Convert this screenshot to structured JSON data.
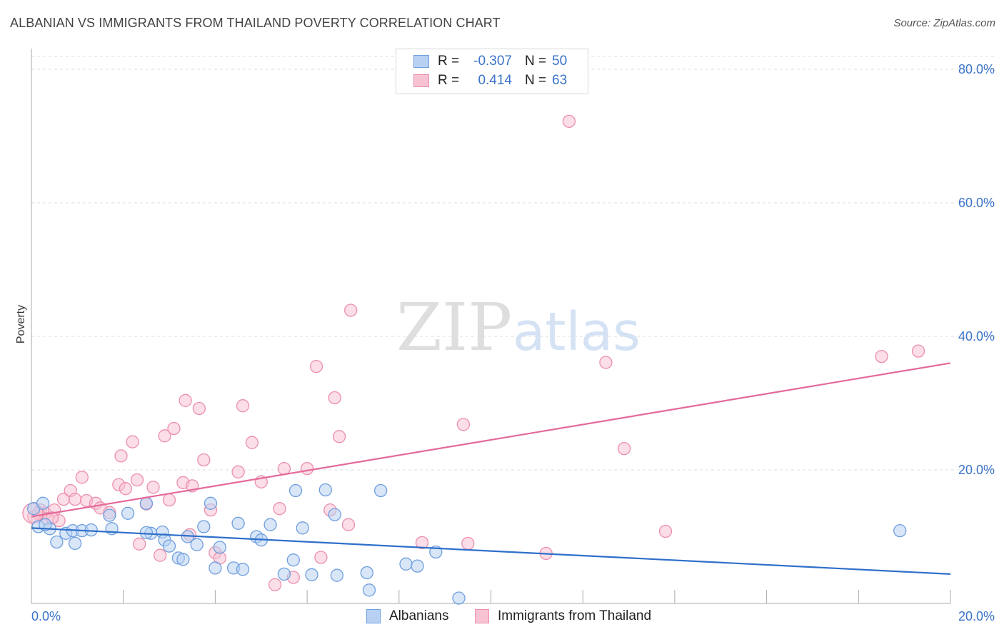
{
  "title": "ALBANIAN VS IMMIGRANTS FROM THAILAND POVERTY CORRELATION CHART",
  "source": "Source: ZipAtlas.com",
  "watermark": {
    "zip": "ZIP",
    "atlas": "atlas"
  },
  "colors": {
    "albanians_fill": "#b8d1f3",
    "albanians_stroke": "#6f9fde",
    "albanians_line": "#2f6fca",
    "thailand_fill": "#f7c3d3",
    "thailand_stroke": "#ec8fae",
    "thailand_line": "#e4699a",
    "axis_text": "#3a73c8",
    "grid": "#dddddd"
  },
  "legend": {
    "rows": [
      {
        "r_label": "R =",
        "r_value": "-0.307",
        "n_label": "N =",
        "n_value": "50"
      },
      {
        "r_label": "R =",
        "r_value": "0.414",
        "n_label": "N =",
        "n_value": "63"
      }
    ]
  },
  "bottom_legend": {
    "albanians": "Albanians",
    "thailand": "Immigrants from Thailand"
  },
  "chart_data": {
    "type": "scatter",
    "title": "ALBANIAN VS IMMIGRANTS FROM THAILAND POVERTY CORRELATION CHART",
    "xlabel": "",
    "ylabel": "Poverty",
    "xlim": [
      0,
      20
    ],
    "ylim": [
      0,
      80
    ],
    "x_tick_labels": [
      "0.0%",
      "20.0%"
    ],
    "y_ticks": [
      20,
      40,
      60,
      80
    ],
    "y_tick_labels": [
      "20.0%",
      "40.0%",
      "60.0%",
      "80.0%"
    ],
    "grid": true,
    "series": [
      {
        "name": "Albanians",
        "r": -0.307,
        "n": 50,
        "trend": {
          "x": [
            0,
            20
          ],
          "y": [
            11.3,
            4.4
          ]
        },
        "points": [
          [
            0.05,
            14.2
          ],
          [
            0.15,
            11.5
          ],
          [
            0.25,
            15.0
          ],
          [
            0.4,
            11.2
          ],
          [
            0.55,
            9.2
          ],
          [
            0.75,
            10.5
          ],
          [
            0.9,
            10.9
          ],
          [
            0.95,
            9.0
          ],
          [
            1.1,
            10.9
          ],
          [
            1.75,
            11.2
          ],
          [
            1.7,
            13.2
          ],
          [
            2.1,
            13.5
          ],
          [
            2.5,
            15.0
          ],
          [
            2.6,
            10.5
          ],
          [
            2.85,
            10.7
          ],
          [
            2.9,
            9.5
          ],
          [
            3.0,
            8.6
          ],
          [
            3.2,
            6.8
          ],
          [
            3.3,
            6.6
          ],
          [
            3.4,
            10.0
          ],
          [
            3.6,
            8.8
          ],
          [
            3.75,
            11.5
          ],
          [
            3.9,
            15.0
          ],
          [
            4.0,
            5.3
          ],
          [
            4.1,
            8.4
          ],
          [
            4.4,
            5.3
          ],
          [
            4.5,
            12.0
          ],
          [
            4.6,
            5.1
          ],
          [
            4.9,
            10.0
          ],
          [
            5.0,
            9.5
          ],
          [
            5.2,
            11.8
          ],
          [
            5.5,
            4.4
          ],
          [
            5.7,
            6.5
          ],
          [
            5.75,
            16.9
          ],
          [
            5.9,
            11.3
          ],
          [
            6.1,
            4.3
          ],
          [
            6.4,
            17.0
          ],
          [
            6.6,
            13.3
          ],
          [
            6.65,
            4.2
          ],
          [
            7.3,
            4.6
          ],
          [
            7.35,
            2.0
          ],
          [
            7.6,
            16.9
          ],
          [
            8.15,
            5.9
          ],
          [
            8.4,
            5.6
          ],
          [
            8.8,
            7.7
          ],
          [
            9.3,
            0.8
          ],
          [
            18.9,
            10.9
          ],
          [
            1.3,
            11.0
          ],
          [
            0.3,
            11.8
          ],
          [
            2.5,
            10.6
          ]
        ]
      },
      {
        "name": "Immigrants from Thailand",
        "r": 0.414,
        "n": 63,
        "trend": {
          "x": [
            0,
            20
          ],
          "y": [
            13.0,
            36.0
          ]
        },
        "points": [
          [
            0.05,
            13.0
          ],
          [
            0.2,
            14.0
          ],
          [
            0.3,
            13.5
          ],
          [
            0.35,
            12.7
          ],
          [
            0.5,
            14.0
          ],
          [
            0.6,
            12.4
          ],
          [
            0.7,
            15.6
          ],
          [
            0.85,
            16.9
          ],
          [
            0.95,
            15.6
          ],
          [
            1.1,
            18.9
          ],
          [
            1.2,
            15.4
          ],
          [
            1.4,
            15.0
          ],
          [
            1.5,
            14.3
          ],
          [
            1.7,
            13.6
          ],
          [
            1.9,
            17.8
          ],
          [
            1.95,
            22.1
          ],
          [
            2.05,
            17.2
          ],
          [
            2.2,
            24.2
          ],
          [
            2.3,
            18.5
          ],
          [
            2.35,
            8.9
          ],
          [
            2.5,
            14.9
          ],
          [
            2.65,
            17.4
          ],
          [
            2.8,
            7.2
          ],
          [
            2.9,
            25.1
          ],
          [
            3.0,
            15.5
          ],
          [
            3.1,
            26.2
          ],
          [
            3.3,
            18.1
          ],
          [
            3.35,
            30.4
          ],
          [
            3.45,
            10.3
          ],
          [
            3.5,
            17.6
          ],
          [
            3.65,
            29.2
          ],
          [
            3.75,
            21.5
          ],
          [
            3.9,
            14.0
          ],
          [
            4.0,
            7.6
          ],
          [
            4.1,
            6.8
          ],
          [
            4.5,
            19.7
          ],
          [
            4.6,
            29.6
          ],
          [
            4.8,
            24.1
          ],
          [
            5.0,
            18.2
          ],
          [
            5.3,
            2.8
          ],
          [
            5.4,
            14.2
          ],
          [
            5.5,
            20.2
          ],
          [
            5.7,
            3.9
          ],
          [
            6.0,
            20.2
          ],
          [
            6.2,
            35.5
          ],
          [
            6.3,
            6.9
          ],
          [
            6.5,
            14.0
          ],
          [
            6.6,
            30.8
          ],
          [
            6.7,
            25.0
          ],
          [
            6.9,
            11.8
          ],
          [
            6.95,
            43.9
          ],
          [
            8.5,
            9.1
          ],
          [
            9.4,
            26.8
          ],
          [
            9.5,
            9.0
          ],
          [
            11.2,
            7.5
          ],
          [
            11.7,
            72.2
          ],
          [
            12.5,
            36.1
          ],
          [
            12.9,
            23.2
          ],
          [
            13.8,
            10.8
          ],
          [
            18.5,
            37.0
          ],
          [
            19.3,
            37.8
          ],
          [
            0.15,
            13.5
          ],
          [
            0.45,
            12.8
          ]
        ]
      }
    ]
  },
  "y_axis_title": "Poverty"
}
